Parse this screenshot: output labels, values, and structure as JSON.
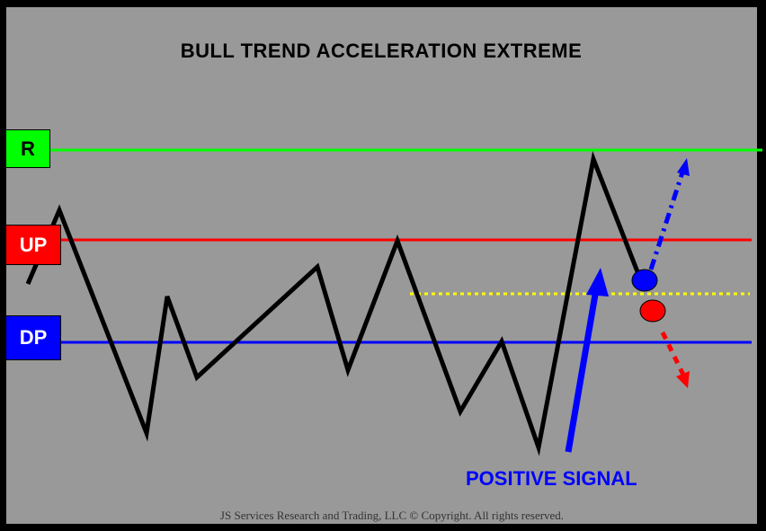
{
  "title": "BULL TREND ACCELERATION EXTREME",
  "levels": {
    "r": {
      "label": "R",
      "color": "#00ff00",
      "text_color": "#000000"
    },
    "up": {
      "label": "UP",
      "color": "#ff0000",
      "text_color": "#ffffff"
    },
    "dp": {
      "label": "DP",
      "color": "#0000ff",
      "text_color": "#ffffff"
    }
  },
  "signal": {
    "label": "POSITIVE SIGNAL",
    "color": "#0000ff"
  },
  "trigger_line_color": "#ffff00",
  "markers": {
    "up_dot_color": "#0000ff",
    "down_dot_color": "#ff0000"
  },
  "copyright": "JS Services Research  and Trading,  LLC © Copyright.  All rights reserved."
}
